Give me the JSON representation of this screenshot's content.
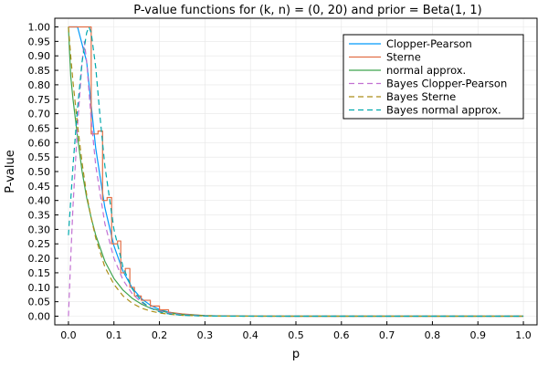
{
  "chart_data": {
    "type": "line",
    "title": "P-value functions for (k, n) = (0, 20) and prior = Beta(1, 1)",
    "xlabel": "p",
    "ylabel": "P-value",
    "xlim": [
      -0.03,
      1.03
    ],
    "ylim": [
      -0.03,
      1.03
    ],
    "xticks": [
      0.0,
      0.1,
      0.2,
      0.3,
      0.4,
      0.5,
      0.6,
      0.7,
      0.8,
      0.9,
      1.0
    ],
    "xtick_labels": [
      "0.0",
      "0.1",
      "0.2",
      "0.3",
      "0.4",
      "0.5",
      "0.6",
      "0.7",
      "0.8",
      "0.9",
      "1.0"
    ],
    "yticks": [
      0,
      0.05,
      0.1,
      0.15,
      0.2,
      0.25,
      0.3,
      0.35,
      0.4,
      0.45,
      0.5,
      0.55,
      0.6,
      0.65,
      0.7,
      0.75,
      0.8,
      0.85,
      0.9,
      0.95,
      1.0
    ],
    "ytick_labels": [
      "0.00",
      "0.05",
      "0.10",
      "0.15",
      "0.20",
      "0.25",
      "0.30",
      "0.35",
      "0.40",
      "0.45",
      "0.50",
      "0.55",
      "0.60",
      "0.65",
      "0.70",
      "0.75",
      "0.80",
      "0.85",
      "0.90",
      "0.95",
      "1.00"
    ],
    "grid": true,
    "legend_position": "top-right",
    "series": [
      {
        "name": "Clopper-Pearson",
        "color": "#009AFA",
        "dash": "solid",
        "x": [
          0,
          0.02,
          0.04,
          0.06,
          0.08,
          0.1,
          0.12,
          0.14,
          0.16,
          0.18,
          0.2,
          0.22,
          0.25,
          0.3,
          0.35,
          0.4,
          0.5,
          0.6,
          0.7,
          0.8,
          0.9,
          1.0
        ],
        "y": [
          1.0,
          1.0,
          0.88,
          0.58,
          0.376,
          0.243,
          0.155,
          0.098,
          0.061,
          0.038,
          0.023,
          0.014,
          0.0063,
          0.0016,
          0.0004,
          0.0001,
          0.0,
          0.0,
          0.0,
          0.0,
          0.0,
          0.0
        ]
      },
      {
        "name": "Sterne",
        "color": "#E26F46",
        "dash": "solid",
        "x": [
          0,
          0.05,
          0.05,
          0.065,
          0.065,
          0.075,
          0.075,
          0.085,
          0.085,
          0.095,
          0.095,
          0.108,
          0.108,
          0.115,
          0.115,
          0.125,
          0.125,
          0.135,
          0.135,
          0.145,
          0.145,
          0.16,
          0.16,
          0.18,
          0.18,
          0.2,
          0.2,
          0.22,
          0.22,
          0.25,
          0.3,
          0.35,
          0.4,
          0.5,
          0.6,
          0.7,
          0.8,
          0.9,
          1.0
        ],
        "y": [
          1.0,
          1.0,
          0.63,
          0.63,
          0.64,
          0.64,
          0.4,
          0.4,
          0.41,
          0.41,
          0.25,
          0.25,
          0.26,
          0.26,
          0.15,
          0.15,
          0.165,
          0.165,
          0.1,
          0.1,
          0.07,
          0.07,
          0.055,
          0.055,
          0.035,
          0.035,
          0.022,
          0.022,
          0.014,
          0.008,
          0.002,
          0.0005,
          0.0001,
          0.0,
          0.0,
          0.0,
          0.0,
          0.0,
          0.0
        ]
      },
      {
        "name": "normal approx.",
        "color": "#3EA44E",
        "dash": "solid",
        "x": [
          0,
          0.005,
          0.01,
          0.02,
          0.03,
          0.04,
          0.05,
          0.06,
          0.08,
          0.1,
          0.12,
          0.14,
          0.16,
          0.18,
          0.2,
          0.22,
          0.25,
          0.3,
          0.35,
          0.4,
          0.5,
          0.6,
          0.7,
          0.8,
          0.9,
          1.0
        ],
        "y": [
          1.0,
          0.83,
          0.75,
          0.62,
          0.5,
          0.41,
          0.34,
          0.28,
          0.19,
          0.13,
          0.09,
          0.062,
          0.042,
          0.028,
          0.019,
          0.012,
          0.006,
          0.002,
          0.0006,
          0.0002,
          0.0,
          0.0,
          0.0,
          0.0,
          0.0,
          0.0
        ]
      },
      {
        "name": "Bayes Clopper-Pearson",
        "color": "#C271D2",
        "dash": "dashed",
        "x": [
          0,
          0.005,
          0.01,
          0.02,
          0.03,
          0.035,
          0.04,
          0.05,
          0.06,
          0.08,
          0.1,
          0.12,
          0.14,
          0.16,
          0.18,
          0.2,
          0.22,
          0.25,
          0.3,
          0.35,
          0.4,
          0.5,
          0.6,
          0.7,
          0.8,
          0.9,
          1.0
        ],
        "y": [
          0.0,
          0.2,
          0.38,
          0.66,
          0.88,
          0.95,
          0.88,
          0.68,
          0.52,
          0.32,
          0.2,
          0.125,
          0.078,
          0.048,
          0.029,
          0.018,
          0.011,
          0.005,
          0.0012,
          0.0003,
          0.0001,
          0.0,
          0.0,
          0.0,
          0.0,
          0.0,
          0.0
        ]
      },
      {
        "name": "Bayes Sterne",
        "color": "#AC8E18",
        "dash": "dashed",
        "x": [
          0,
          0.005,
          0.01,
          0.02,
          0.03,
          0.04,
          0.05,
          0.06,
          0.08,
          0.1,
          0.12,
          0.14,
          0.16,
          0.18,
          0.2,
          0.22,
          0.25,
          0.3,
          0.35,
          0.4,
          0.5,
          0.6,
          0.7,
          0.8,
          0.9,
          1.0
        ],
        "y": [
          1.0,
          0.9,
          0.81,
          0.66,
          0.53,
          0.42,
          0.34,
          0.27,
          0.17,
          0.11,
          0.07,
          0.045,
          0.028,
          0.018,
          0.011,
          0.007,
          0.003,
          0.0008,
          0.0002,
          0.0,
          0.0,
          0.0,
          0.0,
          0.0,
          0.0,
          0.0
        ]
      },
      {
        "name": "Bayes normal approx.",
        "color": "#00A9AD",
        "dash": "dashed",
        "x": [
          0,
          0.005,
          0.01,
          0.02,
          0.03,
          0.04,
          0.045,
          0.05,
          0.06,
          0.07,
          0.08,
          0.1,
          0.12,
          0.14,
          0.16,
          0.18,
          0.2,
          0.22,
          0.25,
          0.3,
          0.35,
          0.4,
          0.5,
          0.6,
          0.7,
          0.8,
          0.9,
          1.0
        ],
        "y": [
          0.28,
          0.4,
          0.52,
          0.72,
          0.88,
          0.98,
          1.0,
          0.98,
          0.86,
          0.68,
          0.52,
          0.3,
          0.17,
          0.095,
          0.052,
          0.028,
          0.015,
          0.008,
          0.003,
          0.0005,
          0.0001,
          0.0,
          0.0,
          0.0,
          0.0,
          0.0,
          0.0,
          0.0
        ]
      }
    ]
  }
}
